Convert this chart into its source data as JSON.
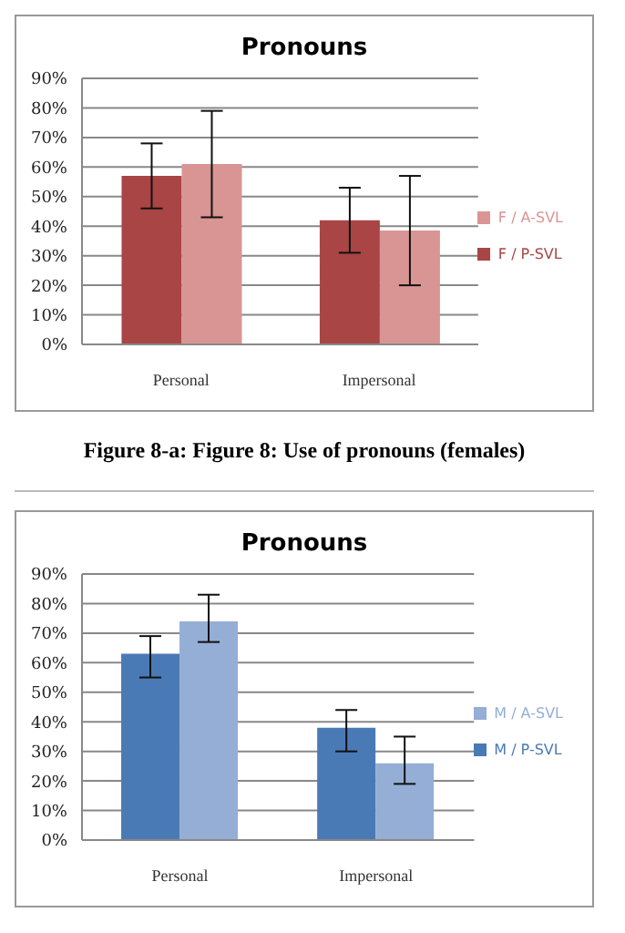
{
  "chart_data": [
    {
      "type": "bar",
      "title": "Pronouns",
      "categories": [
        "Personal",
        "Impersonal"
      ],
      "series": [
        {
          "name": "F / P-SVL",
          "color": "#a94545",
          "values": [
            57,
            42
          ],
          "errors": [
            [
              46,
              68
            ],
            [
              31,
              53
            ]
          ]
        },
        {
          "name": "F / A-SVL",
          "color": "#d99594",
          "values": [
            61,
            38.5
          ],
          "errors": [
            [
              43,
              79
            ],
            [
              20,
              57
            ]
          ]
        }
      ],
      "ylim": [
        0,
        90
      ],
      "yticks": [
        {
          "value": 0,
          "label": "0%"
        },
        {
          "value": 10,
          "label": "10%"
        },
        {
          "value": 20,
          "label": "20%"
        },
        {
          "value": 30,
          "label": "30%"
        },
        {
          "value": 40,
          "label": "40%"
        },
        {
          "value": 50,
          "label": "50%"
        },
        {
          "value": 60,
          "label": "60%"
        },
        {
          "value": 70,
          "label": "70%"
        },
        {
          "value": 80,
          "label": "80%"
        },
        {
          "value": 90,
          "label": "90%"
        }
      ],
      "grid": "y",
      "legend": "right",
      "annotations": [
        "Figure 8-a: Figure 8: Use of pronouns (females)"
      ]
    },
    {
      "type": "bar",
      "title": "Pronouns",
      "categories": [
        "Personal",
        "Impersonal"
      ],
      "series": [
        {
          "name": "M / P-SVL",
          "color": "#4a7ab5",
          "values": [
            63,
            38
          ],
          "errors": [
            [
              55,
              69
            ],
            [
              30,
              44
            ]
          ]
        },
        {
          "name": "M / A-SVL",
          "color": "#95aed6",
          "values": [
            74,
            26
          ],
          "errors": [
            [
              67,
              83
            ],
            [
              19,
              35
            ]
          ]
        }
      ],
      "ylim": [
        0,
        90
      ],
      "yticks": [
        {
          "value": 0,
          "label": "0%"
        },
        {
          "value": 10,
          "label": "10%"
        },
        {
          "value": 20,
          "label": "20%"
        },
        {
          "value": 30,
          "label": "30%"
        },
        {
          "value": 40,
          "label": "40%"
        },
        {
          "value": 50,
          "label": "50%"
        },
        {
          "value": 60,
          "label": "60%"
        },
        {
          "value": 70,
          "label": "70%"
        },
        {
          "value": 80,
          "label": "80%"
        },
        {
          "value": 90,
          "label": "90%"
        }
      ],
      "grid": "y",
      "legend": "right"
    }
  ]
}
